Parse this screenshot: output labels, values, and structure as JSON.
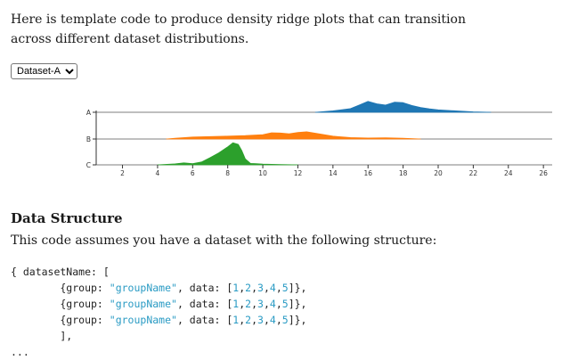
{
  "intro": "Here is template code to produce density ridge plots that can transition across different dataset distributions.",
  "dataset_select": {
    "selected": "Dataset-A",
    "options": [
      "Dataset-A"
    ]
  },
  "chart_data": {
    "type": "area",
    "categories": [
      "A",
      "B",
      "C"
    ],
    "x_ticks": [
      2,
      4,
      6,
      8,
      10,
      12,
      14,
      16,
      18,
      20,
      22,
      24,
      26
    ],
    "xlim": [
      0.5,
      26.5
    ],
    "colors": {
      "A": "#1f77b4",
      "B": "#ff7f0e",
      "C": "#2ca02c"
    },
    "series": [
      {
        "name": "A",
        "x": [
          13,
          14,
          15,
          15.5,
          16,
          16.5,
          17,
          17.5,
          18,
          18.5,
          19,
          19.5,
          20,
          21,
          22,
          23
        ],
        "values": [
          0,
          0.06,
          0.15,
          0.3,
          0.45,
          0.35,
          0.3,
          0.42,
          0.4,
          0.28,
          0.2,
          0.14,
          0.1,
          0.06,
          0.02,
          0
        ]
      },
      {
        "name": "B",
        "x": [
          4.5,
          5,
          6,
          7,
          8,
          9,
          10,
          10.5,
          11,
          11.5,
          12,
          12.5,
          13,
          14,
          15,
          16,
          17,
          18,
          19
        ],
        "values": [
          0,
          0.03,
          0.08,
          0.1,
          0.12,
          0.14,
          0.18,
          0.26,
          0.25,
          0.22,
          0.27,
          0.3,
          0.24,
          0.12,
          0.06,
          0.04,
          0.05,
          0.03,
          0
        ]
      },
      {
        "name": "C",
        "x": [
          4,
          5,
          5.5,
          6,
          6.5,
          7,
          7.5,
          8,
          8.3,
          8.6,
          8.8,
          9,
          9.3,
          9.6,
          10,
          11,
          12
        ],
        "values": [
          0,
          0.04,
          0.08,
          0.05,
          0.12,
          0.3,
          0.5,
          0.75,
          0.92,
          0.85,
          0.6,
          0.25,
          0.06,
          0.05,
          0.03,
          0.01,
          0
        ]
      }
    ]
  },
  "section_title": "Data Structure",
  "section_desc": "This code assumes you have a dataset with the following structure:",
  "code": {
    "line1": "{ datasetName: [",
    "row_prefix": "{group: ",
    "row_group": "\"groupName\"",
    "row_data_label": ", data: [",
    "row_nums": [
      "1",
      "2",
      "3",
      "4",
      "5"
    ],
    "row_suffix": "]},",
    "close": "],",
    "ellipsis": "..."
  }
}
